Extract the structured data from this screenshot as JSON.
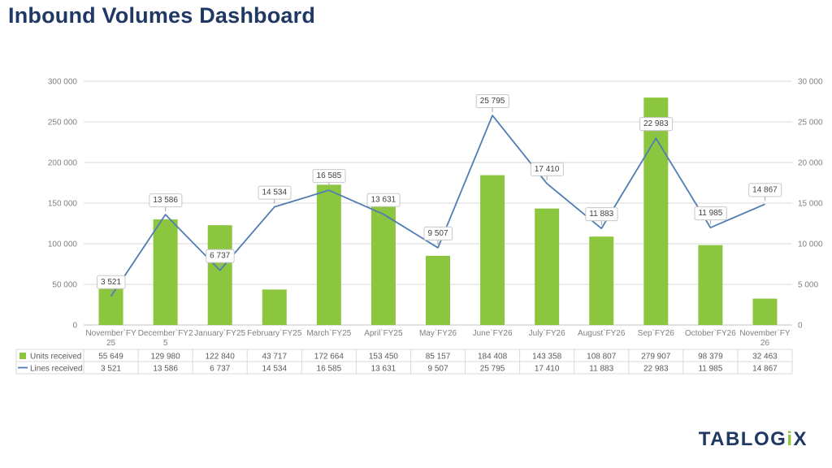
{
  "page": {
    "title": "Inbound Volumes Dashboard"
  },
  "logo": {
    "part1": "TABLOG",
    "accent": "i",
    "part2": "X"
  },
  "colors": {
    "title": "#1F3864",
    "bar": "#8CC63F",
    "line": "#4F7DB3",
    "grid": "#D9D9D9",
    "axis_text": "#808080",
    "table_text": "#595959",
    "label_text": "#404040",
    "label_border": "#C8C8C8"
  },
  "chart_data": {
    "type": "bar",
    "subtype": "combo-bar-line",
    "title": "Inbound Volumes Dashboard",
    "grid": true,
    "legend_position": "data-table-left",
    "categories": [
      "November`FY25",
      "December`FY25",
      "January`FY25",
      "February`FY25",
      "March`FY25",
      "April`FY25",
      "May`FY26",
      "June`FY26",
      "July`FY26",
      "August`FY26",
      "Sep`FY26",
      "October`FY26",
      "November`FY26"
    ],
    "category_label_lines": [
      [
        "November`FY",
        "25"
      ],
      [
        "December`FY2",
        "5"
      ],
      [
        "January`FY25"
      ],
      [
        "February`FY25"
      ],
      [
        "March`FY25"
      ],
      [
        "April`FY25"
      ],
      [
        "May`FY26"
      ],
      [
        "June`FY26"
      ],
      [
        "July`FY26"
      ],
      [
        "August`FY26"
      ],
      [
        "Sep`FY26"
      ],
      [
        "October`FY26"
      ],
      [
        "November`FY",
        "26"
      ]
    ],
    "series": [
      {
        "name": "Units received",
        "type": "bar",
        "axis": "left",
        "color": "#8CC63F",
        "values": [
          55649,
          129980,
          122840,
          43717,
          172664,
          153450,
          85157,
          184408,
          143358,
          108807,
          279907,
          98379,
          32463
        ]
      },
      {
        "name": "Lines received",
        "type": "line",
        "axis": "right",
        "color": "#4F7DB3",
        "data_labels": true,
        "values": [
          3521,
          13586,
          6737,
          14534,
          16585,
          13631,
          9507,
          25795,
          17410,
          11883,
          22983,
          11985,
          14867
        ]
      }
    ],
    "left_axis": {
      "min": 0,
      "max": 300000,
      "step": 50000,
      "tick_labels": [
        "0",
        "50 000",
        "100 000",
        "150 000",
        "200 000",
        "250 000",
        "300 000"
      ]
    },
    "right_axis": {
      "min": 0,
      "max": 30000,
      "step": 5000,
      "tick_labels": [
        "0",
        "5 000",
        "10 000",
        "15 000",
        "20 000",
        "25 000",
        "30 000"
      ]
    },
    "data_table": true
  }
}
